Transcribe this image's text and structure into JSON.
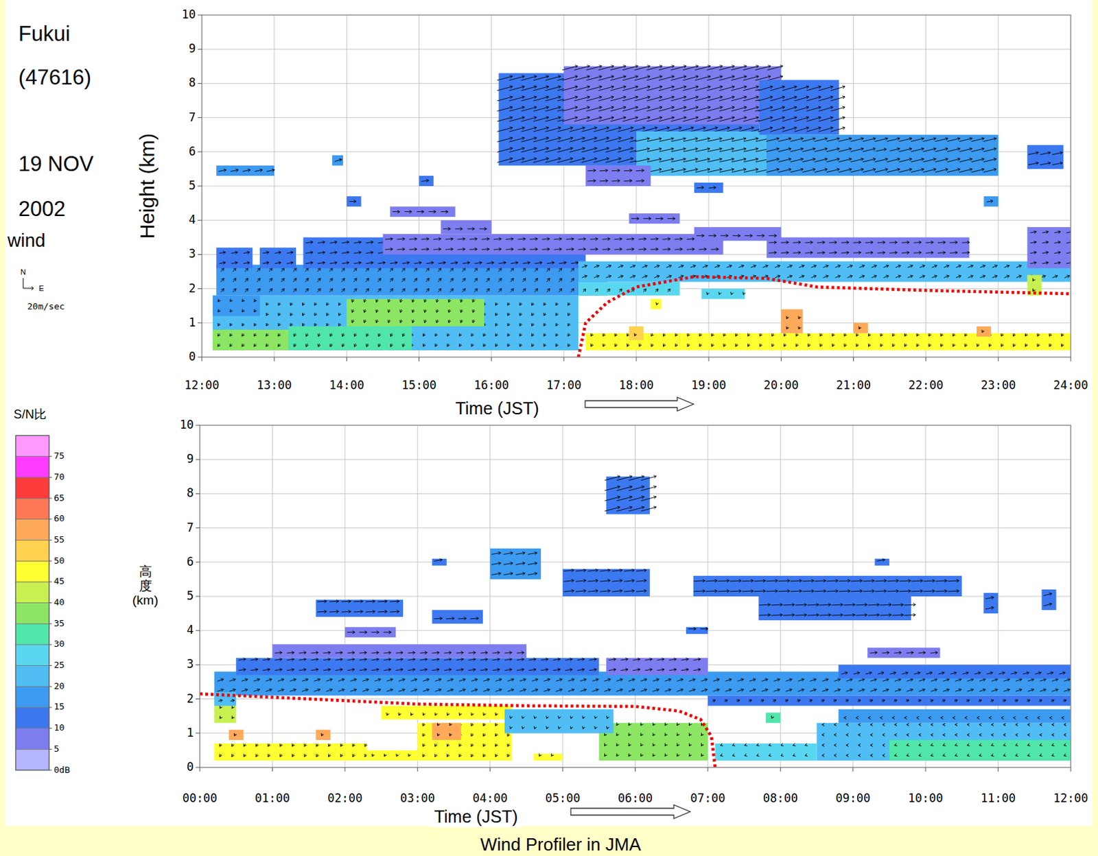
{
  "header": {
    "station": "Fukui",
    "station_id": "(47616)",
    "date_lines": [
      "19 NOV",
      "2002"
    ]
  },
  "wind_legend": {
    "title": "wind",
    "north": "N",
    "east": "E",
    "label": "20m/sec",
    "speed": 20
  },
  "colorbar": {
    "title": "S/N比",
    "range": [
      0,
      80
    ],
    "ticks": [
      {
        "value": 0,
        "label": "0dB"
      },
      5,
      10,
      15,
      20,
      25,
      30,
      35,
      40,
      45,
      50,
      55,
      60,
      65,
      70,
      75
    ],
    "colors": [
      "#b4b4ff",
      "#7d7df0",
      "#3c78f0",
      "#3c9af0",
      "#50bef5",
      "#5ad7f0",
      "#50e6aa",
      "#8ce664",
      "#c8f050",
      "#ffff32",
      "#ffd250",
      "#ffaa5a",
      "#ff7855",
      "#ff3c3c",
      "#ff3cff",
      "#ff99ff"
    ]
  },
  "footer": "Wind Profiler in JMA",
  "chart_data": [
    {
      "type": "wind_profile",
      "x_label": "Time (JST)",
      "y_label": "Height (km)",
      "grid": true,
      "xlim": [
        12,
        24
      ],
      "xticks": [
        {
          "value": 12,
          "label": "12:00"
        },
        {
          "value": 13,
          "label": "13:00"
        },
        {
          "value": 14,
          "label": "14:00"
        },
        {
          "value": 15,
          "label": "15:00"
        },
        {
          "value": 16,
          "label": "16:00"
        },
        {
          "value": 17,
          "label": "17:00"
        },
        {
          "value": 18,
          "label": "18:00"
        },
        {
          "value": 19,
          "label": "19:00"
        },
        {
          "value": 20,
          "label": "20:00"
        },
        {
          "value": 21,
          "label": "21:00"
        },
        {
          "value": 22,
          "label": "22:00"
        },
        {
          "value": 23,
          "label": "23:00"
        },
        {
          "value": 24,
          "label": "24:00"
        }
      ],
      "ylim": [
        0,
        10
      ],
      "yticks": [
        0,
        1,
        2,
        3,
        4,
        5,
        6,
        7,
        8,
        9,
        10
      ],
      "cells": [
        {
          "t0": 12.15,
          "t1": 17.2,
          "h0": 0.2,
          "h1": 1.8,
          "snr": 24,
          "u": -3,
          "v": -5
        },
        {
          "t0": 12.15,
          "t1": 13.2,
          "h0": 0.2,
          "h1": 0.8,
          "snr": 38,
          "u": -4,
          "v": -5
        },
        {
          "t0": 13.2,
          "t1": 14.9,
          "h0": 0.2,
          "h1": 0.9,
          "snr": 33,
          "u": -3,
          "v": -6
        },
        {
          "t0": 14.0,
          "t1": 15.9,
          "h0": 0.9,
          "h1": 1.7,
          "snr": 35,
          "u": -2,
          "v": -6
        },
        {
          "t0": 12.15,
          "t1": 12.8,
          "h0": 1.2,
          "h1": 1.8,
          "snr": 15,
          "u": -3,
          "v": -4
        },
        {
          "t0": 12.2,
          "t1": 17.6,
          "h0": 1.8,
          "h1": 2.7,
          "snr": 15,
          "u": 6,
          "v": 7
        },
        {
          "t0": 17.2,
          "t1": 18.6,
          "h0": 1.8,
          "h1": 2.2,
          "snr": 26,
          "u": 5,
          "v": 6
        },
        {
          "t0": 13.4,
          "t1": 17.3,
          "h0": 2.6,
          "h1": 3.5,
          "snr": 10,
          "u": 14,
          "v": 2
        },
        {
          "t0": 14.5,
          "t1": 19.2,
          "h0": 3.0,
          "h1": 3.6,
          "snr": 8,
          "u": 15,
          "v": 1
        },
        {
          "t0": 12.2,
          "t1": 12.7,
          "h0": 2.6,
          "h1": 3.2,
          "snr": 10,
          "u": 12,
          "v": 2
        },
        {
          "t0": 12.8,
          "t1": 13.3,
          "h0": 2.6,
          "h1": 3.2,
          "snr": 10,
          "u": 12,
          "v": 2
        },
        {
          "t0": 14.6,
          "t1": 15.5,
          "h0": 4.1,
          "h1": 4.4,
          "snr": 8,
          "u": 14,
          "v": 0
        },
        {
          "t0": 14.0,
          "t1": 14.2,
          "h0": 4.4,
          "h1": 4.7,
          "snr": 12,
          "u": 13,
          "v": 0
        },
        {
          "t0": 15.3,
          "t1": 16.0,
          "h0": 3.6,
          "h1": 4.0,
          "snr": 8,
          "u": 14,
          "v": 0
        },
        {
          "t0": 12.2,
          "t1": 13.0,
          "h0": 5.3,
          "h1": 5.6,
          "snr": 15,
          "u": 15,
          "v": 3
        },
        {
          "t0": 13.8,
          "t1": 13.95,
          "h0": 5.6,
          "h1": 5.9,
          "snr": 15,
          "u": 14,
          "v": 4
        },
        {
          "t0": 15.0,
          "t1": 15.2,
          "h0": 5.0,
          "h1": 5.3,
          "snr": 10,
          "u": 14,
          "v": 2
        },
        {
          "t0": 16.1,
          "t1": 19.7,
          "h0": 5.6,
          "h1": 8.3,
          "snr": 12,
          "u": 30,
          "v": 8
        },
        {
          "t0": 17.0,
          "t1": 20.0,
          "h0": 6.8,
          "h1": 8.5,
          "snr": 8,
          "u": 30,
          "v": 8
        },
        {
          "t0": 18.0,
          "t1": 20.0,
          "h0": 5.3,
          "h1": 6.6,
          "snr": 20,
          "u": 28,
          "v": 6
        },
        {
          "t0": 19.7,
          "t1": 20.8,
          "h0": 6.5,
          "h1": 8.1,
          "snr": 12,
          "u": 28,
          "v": 8
        },
        {
          "t0": 19.8,
          "t1": 23.0,
          "h0": 5.3,
          "h1": 6.5,
          "snr": 15,
          "u": 25,
          "v": 6
        },
        {
          "t0": 17.3,
          "t1": 18.2,
          "h0": 5.0,
          "h1": 5.6,
          "snr": 8,
          "u": 16,
          "v": 1
        },
        {
          "t0": 18.8,
          "t1": 19.2,
          "h0": 4.8,
          "h1": 5.1,
          "snr": 10,
          "u": 14,
          "v": 1
        },
        {
          "t0": 21.3,
          "t1": 21.5,
          "h0": 5.9,
          "h1": 6.2,
          "snr": 15,
          "u": 20,
          "v": 4
        },
        {
          "t0": 23.4,
          "t1": 23.9,
          "h0": 5.5,
          "h1": 6.2,
          "snr": 12,
          "u": 20,
          "v": 4
        },
        {
          "t0": 22.8,
          "t1": 23.0,
          "h0": 4.4,
          "h1": 4.7,
          "snr": 15,
          "u": 12,
          "v": 2
        },
        {
          "t0": 17.2,
          "t1": 24.0,
          "h0": 2.2,
          "h1": 2.8,
          "snr": 20,
          "u": 10,
          "v": 4
        },
        {
          "t0": 17.9,
          "t1": 18.6,
          "h0": 3.9,
          "h1": 4.2,
          "snr": 8,
          "u": 15,
          "v": 0
        },
        {
          "t0": 18.8,
          "t1": 20.0,
          "h0": 3.4,
          "h1": 3.8,
          "snr": 8,
          "u": 15,
          "v": 0
        },
        {
          "t0": 19.8,
          "t1": 22.6,
          "h0": 2.9,
          "h1": 3.5,
          "snr": 8,
          "u": 15,
          "v": 1
        },
        {
          "t0": 23.4,
          "t1": 24.0,
          "h0": 2.6,
          "h1": 3.8,
          "snr": 8,
          "u": 12,
          "v": 2
        },
        {
          "t0": 17.3,
          "t1": 24.0,
          "h0": 0.2,
          "h1": 0.7,
          "snr": 48,
          "u": -3,
          "v": -5
        },
        {
          "t0": 17.9,
          "t1": 18.1,
          "h0": 0.5,
          "h1": 0.9,
          "snr": 50,
          "u": -2,
          "v": -4
        },
        {
          "t0": 20.0,
          "t1": 20.3,
          "h0": 0.7,
          "h1": 1.4,
          "snr": 55,
          "u": -2,
          "v": -4
        },
        {
          "t0": 21.0,
          "t1": 21.2,
          "h0": 0.7,
          "h1": 1.0,
          "snr": 57,
          "u": -2,
          "v": -4
        },
        {
          "t0": 22.7,
          "t1": 22.9,
          "h0": 0.6,
          "h1": 0.9,
          "snr": 55,
          "u": -2,
          "v": -4
        },
        {
          "t0": 18.2,
          "t1": 18.35,
          "h0": 1.4,
          "h1": 1.7,
          "snr": 45,
          "u": -1,
          "v": -3
        },
        {
          "t0": 18.9,
          "t1": 19.5,
          "h0": 1.7,
          "h1": 2.0,
          "snr": 25,
          "u": -1,
          "v": -3
        },
        {
          "t0": 23.4,
          "t1": 23.6,
          "h0": 1.8,
          "h1": 2.4,
          "snr": 40,
          "u": -2,
          "v": -3
        }
      ],
      "series": [
        {
          "type": "line",
          "color": "#ee0000",
          "line_style": "dotted",
          "x": [
            17.2,
            17.3,
            17.6,
            18.0,
            18.8,
            19.8,
            20.5,
            22.0,
            24.0
          ],
          "values": [
            0,
            1.0,
            1.6,
            2.05,
            2.35,
            2.3,
            2.05,
            1.95,
            1.85
          ]
        }
      ]
    },
    {
      "type": "wind_profile",
      "x_label": "Time (JST)",
      "y_label": "高度(km)",
      "grid": true,
      "xlim": [
        0,
        12
      ],
      "xticks": [
        {
          "value": 0,
          "label": "00:00"
        },
        {
          "value": 1,
          "label": "01:00"
        },
        {
          "value": 2,
          "label": "02:00"
        },
        {
          "value": 3,
          "label": "03:00"
        },
        {
          "value": 4,
          "label": "04:00"
        },
        {
          "value": 5,
          "label": "05:00"
        },
        {
          "value": 6,
          "label": "06:00"
        },
        {
          "value": 7,
          "label": "07:00"
        },
        {
          "value": 8,
          "label": "08:00"
        },
        {
          "value": 9,
          "label": "09:00"
        },
        {
          "value": 10,
          "label": "10:00"
        },
        {
          "value": 11,
          "label": "11:00"
        },
        {
          "value": 12,
          "label": "12:00"
        }
      ],
      "ylim": [
        0,
        10
      ],
      "yticks": [
        0,
        1,
        2,
        3,
        4,
        5,
        6,
        7,
        8,
        9,
        10
      ],
      "cells": [
        {
          "t0": 0.2,
          "t1": 2.3,
          "h0": 0.2,
          "h1": 0.7,
          "snr": 48,
          "u": -3,
          "v": -5
        },
        {
          "t0": 2.3,
          "t1": 3.0,
          "h0": 0.2,
          "h1": 0.5,
          "snr": 45,
          "u": -2,
          "v": -4
        },
        {
          "t0": 3.0,
          "t1": 4.3,
          "h0": 0.2,
          "h1": 1.3,
          "snr": 48,
          "u": -3,
          "v": -5
        },
        {
          "t0": 4.6,
          "t1": 5.0,
          "h0": 0.2,
          "h1": 0.4,
          "snr": 45,
          "u": -2,
          "v": -3
        },
        {
          "t0": 5.5,
          "t1": 7.0,
          "h0": 0.2,
          "h1": 1.3,
          "snr": 36,
          "u": -2,
          "v": -3
        },
        {
          "t0": 0.4,
          "t1": 0.6,
          "h0": 0.8,
          "h1": 1.1,
          "snr": 55,
          "u": -2,
          "v": -4
        },
        {
          "t0": 1.6,
          "t1": 1.8,
          "h0": 0.8,
          "h1": 1.1,
          "snr": 55,
          "u": -2,
          "v": -4
        },
        {
          "t0": 3.2,
          "t1": 3.6,
          "h0": 0.8,
          "h1": 1.3,
          "snr": 55,
          "u": -2,
          "v": -4
        },
        {
          "t0": 0.2,
          "t1": 0.5,
          "h0": 1.3,
          "h1": 2.1,
          "snr": 40,
          "u": -2,
          "v": -3
        },
        {
          "t0": 2.5,
          "t1": 4.3,
          "h0": 1.4,
          "h1": 1.8,
          "snr": 45,
          "u": -2,
          "v": -4
        },
        {
          "t0": 4.2,
          "t1": 5.7,
          "h0": 1.0,
          "h1": 1.7,
          "snr": 24,
          "u": -1,
          "v": -3
        },
        {
          "t0": 7.1,
          "t1": 8.5,
          "h0": 0.2,
          "h1": 0.7,
          "snr": 28,
          "u": -3,
          "v": -1
        },
        {
          "t0": 8.5,
          "t1": 12.0,
          "h0": 0.2,
          "h1": 1.3,
          "snr": 24,
          "u": -3,
          "v": 0
        },
        {
          "t0": 9.5,
          "t1": 12.0,
          "h0": 0.2,
          "h1": 0.8,
          "snr": 34,
          "u": -3,
          "v": -1
        },
        {
          "t0": 7.8,
          "t1": 8.0,
          "h0": 1.3,
          "h1": 1.6,
          "snr": 30,
          "u": -1,
          "v": -2
        },
        {
          "t0": 8.8,
          "t1": 12.0,
          "h0": 1.3,
          "h1": 1.7,
          "snr": 15,
          "u": -2,
          "v": 0
        },
        {
          "t0": 0.2,
          "t1": 12.0,
          "h0": 2.1,
          "h1": 2.8,
          "snr": 15,
          "u": 12,
          "v": 4
        },
        {
          "t0": 0.2,
          "t1": 0.5,
          "h0": 1.8,
          "h1": 2.2,
          "snr": 24,
          "u": 8,
          "v": 2
        },
        {
          "t0": 7.0,
          "t1": 12.0,
          "h0": 1.8,
          "h1": 2.1,
          "snr": 12,
          "u": 6,
          "v": 3
        },
        {
          "t0": 0.5,
          "t1": 5.5,
          "h0": 2.7,
          "h1": 3.2,
          "snr": 10,
          "u": 14,
          "v": 2
        },
        {
          "t0": 5.6,
          "t1": 7.0,
          "h0": 2.7,
          "h1": 3.2,
          "snr": 8,
          "u": 14,
          "v": 2
        },
        {
          "t0": 8.8,
          "t1": 12.0,
          "h0": 2.6,
          "h1": 3.0,
          "snr": 10,
          "u": 12,
          "v": 3
        },
        {
          "t0": 1.0,
          "t1": 4.5,
          "h0": 3.2,
          "h1": 3.6,
          "snr": 8,
          "u": 14,
          "v": 1
        },
        {
          "t0": 9.2,
          "t1": 10.2,
          "h0": 3.2,
          "h1": 3.5,
          "snr": 8,
          "u": 14,
          "v": 1
        },
        {
          "t0": 1.6,
          "t1": 2.8,
          "h0": 4.4,
          "h1": 4.9,
          "snr": 10,
          "u": 18,
          "v": 1
        },
        {
          "t0": 2.0,
          "t1": 2.7,
          "h0": 3.8,
          "h1": 4.1,
          "snr": 8,
          "u": 15,
          "v": 0
        },
        {
          "t0": 3.2,
          "t1": 3.9,
          "h0": 4.2,
          "h1": 4.6,
          "snr": 10,
          "u": 16,
          "v": 1
        },
        {
          "t0": 6.7,
          "t1": 7.0,
          "h0": 3.9,
          "h1": 4.1,
          "snr": 10,
          "u": 15,
          "v": 0
        },
        {
          "t0": 4.0,
          "t1": 4.7,
          "h0": 5.5,
          "h1": 6.4,
          "snr": 15,
          "u": 18,
          "v": 3
        },
        {
          "t0": 5.0,
          "t1": 6.2,
          "h0": 5.0,
          "h1": 5.8,
          "snr": 10,
          "u": 20,
          "v": 2
        },
        {
          "t0": 6.8,
          "t1": 10.5,
          "h0": 5.0,
          "h1": 5.6,
          "snr": 10,
          "u": 22,
          "v": 1
        },
        {
          "t0": 7.7,
          "t1": 9.8,
          "h0": 4.3,
          "h1": 5.0,
          "snr": 10,
          "u": 22,
          "v": 1
        },
        {
          "t0": 10.8,
          "t1": 11.0,
          "h0": 4.5,
          "h1": 5.1,
          "snr": 12,
          "u": 16,
          "v": 3
        },
        {
          "t0": 11.6,
          "t1": 11.8,
          "h0": 4.6,
          "h1": 5.2,
          "snr": 10,
          "u": 16,
          "v": 4
        },
        {
          "t0": 5.6,
          "t1": 6.2,
          "h0": 7.4,
          "h1": 8.5,
          "snr": 10,
          "u": 30,
          "v": 8
        },
        {
          "t0": 3.2,
          "t1": 3.4,
          "h0": 5.9,
          "h1": 6.1,
          "snr": 10,
          "u": 16,
          "v": 3
        },
        {
          "t0": 9.3,
          "t1": 9.5,
          "h0": 5.9,
          "h1": 6.1,
          "snr": 10,
          "u": 16,
          "v": 3
        }
      ],
      "series": [
        {
          "type": "line",
          "color": "#ee0000",
          "line_style": "dotted",
          "x": [
            0,
            1.0,
            2.0,
            3.0,
            4.5,
            6.0,
            6.6,
            6.9,
            7.05,
            7.1
          ],
          "values": [
            2.15,
            2.05,
            1.95,
            1.85,
            1.8,
            1.78,
            1.65,
            1.4,
            0.9,
            0
          ]
        }
      ]
    }
  ]
}
